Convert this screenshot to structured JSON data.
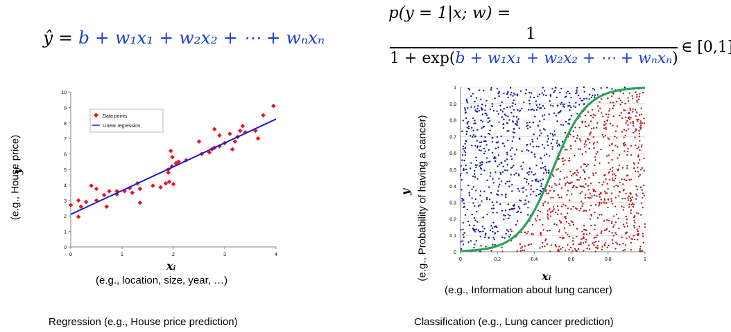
{
  "regression": {
    "formula_lhs": "ŷ",
    "formula_eq": " = ",
    "formula_rhs": "b + w₁x₁ + w₂x₂ + ⋯ + wₙxₙ",
    "x_symbol": "xᵢ",
    "x_desc": "(e.g., location, size, year, …)",
    "y_symbol": "y",
    "y_desc": "(e.g., House price)",
    "caption": "Regression (e.g., House price prediction)"
  },
  "classification": {
    "formula_top": "p(y = 1|x; w) =",
    "frac_num": "1",
    "frac_den_pre": "1 + exp(",
    "frac_den_mid": "b + w₁x₁ + w₂x₂ + ⋯ + wₙxₙ",
    "frac_den_post": ")",
    "frac_range": "∈ [0,1]",
    "x_symbol": "xᵢ",
    "x_desc": "(e.g., Information about lung cancer)",
    "y_symbol": "y",
    "y_desc": "(e.g., Probability of having a cancer)",
    "caption": "Classification (e.g., Lung cancer prediction)"
  },
  "chart_data": [
    {
      "type": "scatter",
      "legend": [
        "Data points",
        "Linear regression"
      ],
      "legend_placement": "top-left",
      "xlim": [
        0,
        4
      ],
      "ylim": [
        0,
        10
      ],
      "x_ticks": [
        "0",
        "1",
        "2",
        "3",
        "4"
      ],
      "y_ticks": [
        "0",
        "1",
        "2",
        "3",
        "4",
        "5",
        "6",
        "7",
        "8",
        "9",
        "10"
      ],
      "grid": false,
      "colors": {
        "points": "#e8141b",
        "line": "#1a1adb"
      },
      "series": [
        {
          "name": "Data points",
          "points": [
            [
              0,
              2.7
            ],
            [
              0.15,
              1.95
            ],
            [
              0.2,
              2.6
            ],
            [
              0.15,
              3.0
            ],
            [
              0.3,
              2.9
            ],
            [
              0.4,
              3.95
            ],
            [
              0.5,
              3.75
            ],
            [
              0.5,
              3.0
            ],
            [
              0.65,
              3.35
            ],
            [
              0.7,
              2.6
            ],
            [
              0.75,
              3.6
            ],
            [
              0.9,
              3.6
            ],
            [
              0.9,
              3.4
            ],
            [
              1.05,
              3.6
            ],
            [
              1.15,
              3.8
            ],
            [
              1.2,
              3.5
            ],
            [
              1.3,
              4.1
            ],
            [
              1.35,
              3.75
            ],
            [
              1.35,
              2.85
            ],
            [
              1.6,
              3.95
            ],
            [
              1.75,
              3.85
            ],
            [
              1.85,
              4.1
            ],
            [
              1.9,
              5.0
            ],
            [
              1.92,
              4.2
            ],
            [
              1.9,
              4.8
            ],
            [
              1.95,
              6.2
            ],
            [
              1.97,
              5.2
            ],
            [
              2.0,
              4.05
            ],
            [
              1.98,
              5.8
            ],
            [
              2.05,
              5.4
            ],
            [
              2.1,
              5.5
            ],
            [
              2.25,
              5.6
            ],
            [
              2.5,
              6.8
            ],
            [
              2.55,
              6.0
            ],
            [
              2.7,
              6.1
            ],
            [
              2.75,
              6.3
            ],
            [
              2.8,
              7.6
            ],
            [
              2.8,
              6.4
            ],
            [
              2.9,
              6.5
            ],
            [
              2.9,
              7.2
            ],
            [
              3.0,
              6.7
            ],
            [
              3.1,
              7.3
            ],
            [
              3.15,
              6.3
            ],
            [
              3.2,
              6.8
            ],
            [
              3.25,
              7.1
            ],
            [
              3.3,
              7.5
            ],
            [
              3.35,
              7.8
            ],
            [
              3.4,
              7.4
            ],
            [
              3.6,
              7.5
            ],
            [
              3.65,
              7.0
            ],
            [
              3.75,
              8.5
            ],
            [
              3.95,
              9.1
            ]
          ]
        },
        {
          "name": "Linear regression",
          "line": [
            [
              0,
              2.1
            ],
            [
              4,
              8.25
            ]
          ]
        }
      ]
    },
    {
      "type": "scatter",
      "xlim": [
        0,
        1
      ],
      "ylim": [
        0,
        1
      ],
      "x_ticks": [
        "0",
        "0.2",
        "0.4",
        "0.6",
        "0.8",
        "1"
      ],
      "y_ticks": [
        "0",
        "0.1",
        "0.2",
        "0.3",
        "0.4",
        "0.5",
        "0.6",
        "0.7",
        "0.8",
        "0.9",
        "1"
      ],
      "grid": true,
      "colors": {
        "class0": "#1a1a9c",
        "class1": "#b21a1a",
        "curve": "#27a35a"
      },
      "sigmoid": {
        "center": 0.5,
        "steepness": 11
      },
      "point_count": 1400,
      "series": [
        {
          "name": "",
          "description": "points above curve"
        },
        {
          "name": "",
          "description": "points below curve"
        },
        {
          "name": "",
          "description": "sigmoid curve"
        }
      ]
    }
  ]
}
